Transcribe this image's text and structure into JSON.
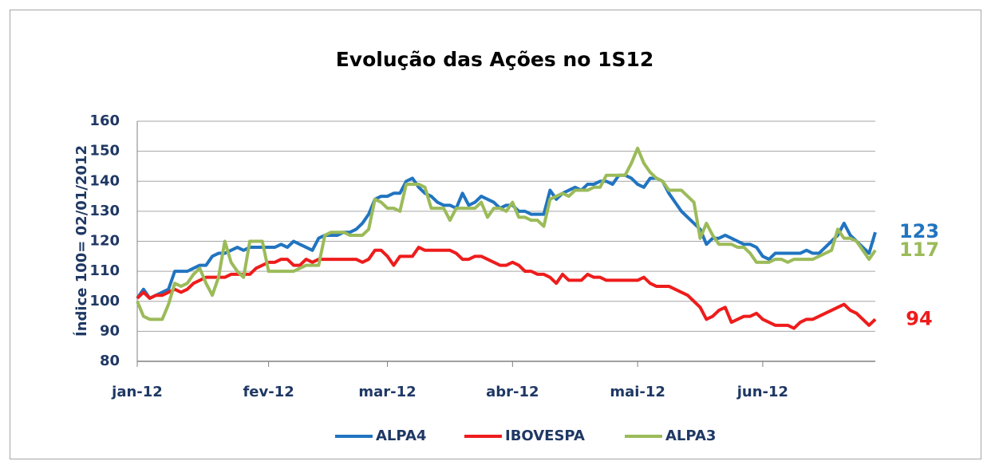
{
  "chart_data": {
    "type": "line",
    "title": "Evolução das Ações no 1S12",
    "y_label": "Índice 100= 02/01/2012",
    "categories": [
      "jan-12",
      null,
      null,
      null,
      null,
      null,
      null,
      null,
      null,
      null,
      null,
      null,
      null,
      null,
      null,
      null,
      null,
      null,
      null,
      null,
      null,
      "fev-12",
      null,
      null,
      null,
      null,
      null,
      null,
      null,
      null,
      null,
      null,
      null,
      null,
      null,
      null,
      null,
      null,
      null,
      null,
      "mar-12",
      null,
      null,
      null,
      null,
      null,
      null,
      null,
      null,
      null,
      null,
      null,
      null,
      null,
      null,
      null,
      null,
      null,
      null,
      null,
      "abr-12",
      null,
      null,
      null,
      null,
      null,
      null,
      null,
      null,
      null,
      null,
      null,
      null,
      null,
      null,
      null,
      null,
      null,
      null,
      null,
      "mai-12",
      null,
      null,
      null,
      null,
      null,
      null,
      null,
      null,
      null,
      null,
      null,
      null,
      null,
      null,
      null,
      null,
      null,
      null,
      null,
      "jun-12",
      null,
      null,
      null,
      null,
      null,
      null,
      null,
      null,
      null,
      null,
      null,
      null,
      null,
      null,
      null,
      null,
      null,
      null
    ],
    "series": [
      {
        "name": "ALPA4",
        "color": "#2174c0",
        "values": [
          101,
          104,
          101,
          102,
          103,
          104,
          110,
          110,
          110,
          111,
          112,
          112,
          115,
          116,
          116,
          117,
          118,
          117,
          118,
          118,
          118,
          118,
          118,
          119,
          118,
          120,
          119,
          118,
          117,
          121,
          122,
          122,
          122,
          123,
          123,
          124,
          126,
          129,
          134,
          135,
          135,
          136,
          136,
          140,
          141,
          138,
          136,
          135,
          133,
          132,
          132,
          131,
          136,
          132,
          133,
          135,
          134,
          133,
          131,
          132,
          132,
          130,
          130,
          129,
          129,
          129,
          137,
          134,
          136,
          137,
          138,
          137,
          139,
          139,
          140,
          140,
          139,
          142,
          142,
          141,
          139,
          138,
          141,
          141,
          140,
          136,
          133,
          130,
          128,
          126,
          124,
          119,
          121,
          121,
          122,
          121,
          120,
          119,
          119,
          118,
          115,
          114,
          116,
          116,
          116,
          116,
          116,
          117,
          116,
          116,
          118,
          120,
          122,
          126,
          122,
          120,
          118,
          116,
          123
        ]
      },
      {
        "name": "IBOVESPA",
        "color": "#ee1c1c",
        "values": [
          101,
          103,
          101,
          102,
          102,
          103,
          104,
          103,
          104,
          106,
          107,
          108,
          108,
          108,
          108,
          109,
          109,
          109,
          109,
          111,
          112,
          113,
          113,
          114,
          114,
          112,
          112,
          114,
          113,
          114,
          114,
          114,
          114,
          114,
          114,
          114,
          113,
          114,
          117,
          117,
          115,
          112,
          115,
          115,
          115,
          118,
          117,
          117,
          117,
          117,
          117,
          116,
          114,
          114,
          115,
          115,
          114,
          113,
          112,
          112,
          113,
          112,
          110,
          110,
          109,
          109,
          108,
          106,
          109,
          107,
          107,
          107,
          109,
          108,
          108,
          107,
          107,
          107,
          107,
          107,
          107,
          108,
          106,
          105,
          105,
          105,
          104,
          103,
          102,
          100,
          98,
          94,
          95,
          97,
          98,
          93,
          94,
          95,
          95,
          96,
          94,
          93,
          92,
          92,
          92,
          91,
          93,
          94,
          94,
          95,
          96,
          97,
          98,
          99,
          97,
          96,
          94,
          92,
          94
        ]
      },
      {
        "name": "ALPA3",
        "color": "#9bbb59",
        "values": [
          100,
          95,
          94,
          94,
          94,
          99,
          106,
          105,
          106,
          109,
          111,
          106,
          102,
          108,
          120,
          113,
          110,
          108,
          120,
          120,
          120,
          110,
          110,
          110,
          110,
          110,
          111,
          112,
          112,
          112,
          122,
          123,
          123,
          123,
          122,
          122,
          122,
          124,
          134,
          133,
          131,
          131,
          130,
          139,
          139,
          139,
          138,
          131,
          131,
          131,
          127,
          131,
          131,
          131,
          131,
          133,
          128,
          131,
          131,
          130,
          133,
          128,
          128,
          127,
          127,
          125,
          134,
          135,
          136,
          135,
          137,
          137,
          137,
          138,
          138,
          142,
          142,
          142,
          142,
          146,
          151,
          146,
          143,
          141,
          140,
          137,
          137,
          137,
          135,
          133,
          121,
          126,
          122,
          119,
          119,
          119,
          118,
          118,
          116,
          113,
          113,
          113,
          114,
          114,
          113,
          114,
          114,
          114,
          114,
          115,
          116,
          117,
          124,
          121,
          121,
          120,
          117,
          114,
          117
        ]
      }
    ],
    "annotations": [
      {
        "label": "123",
        "value": 123,
        "color": "#2174c0"
      },
      {
        "label": "117",
        "value": 117,
        "color": "#9bbb59"
      },
      {
        "label": "94",
        "value": 94,
        "color": "#ee1c1c"
      }
    ],
    "ylim": [
      80,
      160
    ],
    "yticks": [
      80,
      90,
      100,
      110,
      120,
      130,
      140,
      150,
      160
    ],
    "grid": true,
    "legend": "bottom"
  }
}
